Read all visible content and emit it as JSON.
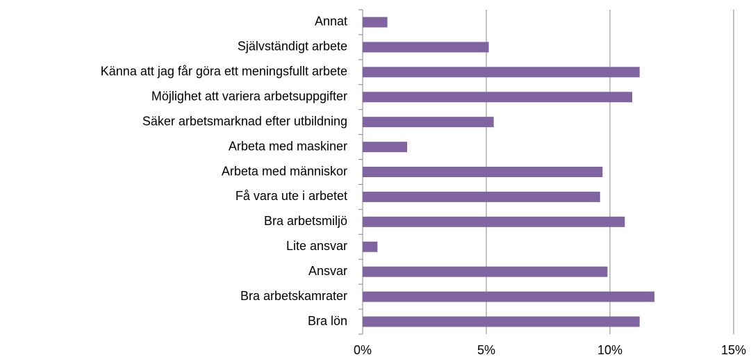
{
  "chart_data": {
    "type": "hbar",
    "categories": [
      "Annat",
      "Självständigt arbete",
      "Känna att jag får göra ett meningsfullt arbete",
      "Möjlighet att variera arbetsuppgifter",
      "Säker arbetsmarknad efter utbildning",
      "Arbeta med maskiner",
      "Arbeta med människor",
      "Få vara ute i arbetet",
      "Bra arbetsmiljö",
      "Lite ansvar",
      "Ansvar",
      "Bra arbetskamrater",
      "Bra lön"
    ],
    "values": [
      1.0,
      5.1,
      11.2,
      10.9,
      5.3,
      1.8,
      9.7,
      9.6,
      10.6,
      0.6,
      9.9,
      11.8,
      11.2
    ],
    "color": "#8064a2",
    "xlim": [
      0,
      15
    ],
    "xticks": [
      {
        "value": 0,
        "label": "0%"
      },
      {
        "value": 5,
        "label": "5%"
      },
      {
        "value": 10,
        "label": "10%"
      },
      {
        "value": 15,
        "label": "15%"
      }
    ],
    "grid": true
  }
}
